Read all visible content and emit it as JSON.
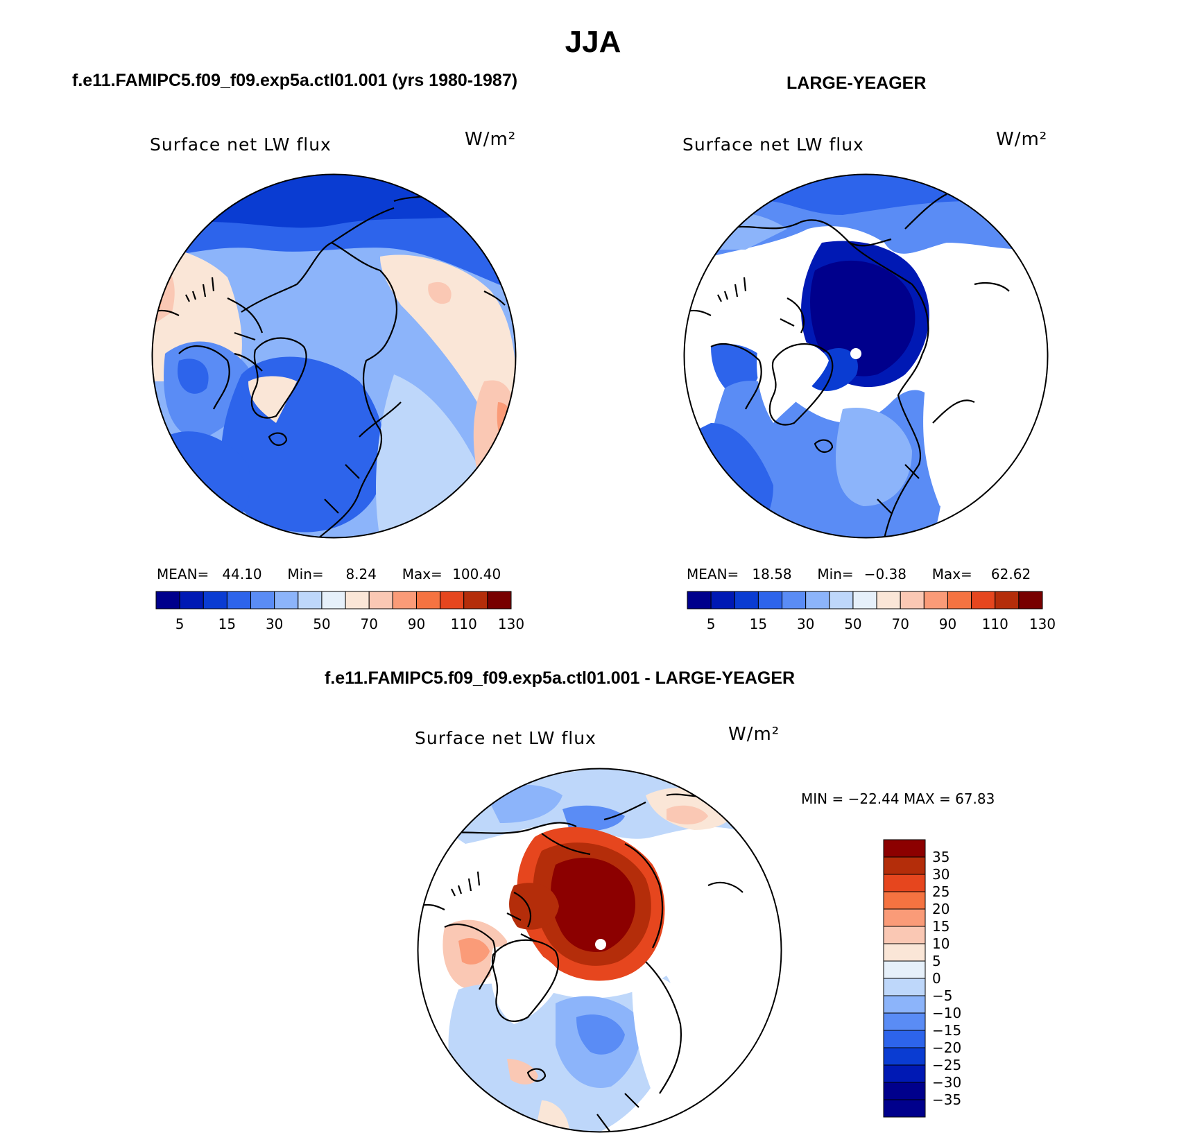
{
  "page": {
    "title": "JJA",
    "left_header": "f.e11.FAMIPC5.f09_f09.exp5a.ctl01.001 (yrs 1980-1987)",
    "right_header": "LARGE-YEAGER",
    "diff_header": "f.e11.FAMIPC5.f09_f09.exp5a.ctl01.001 - LARGE-YEAGER"
  },
  "panels": {
    "model": {
      "title": "Surface net LW flux",
      "units": "W/m²",
      "mean_label": "MEAN=",
      "mean": "44.10",
      "min_label": "Min=",
      "min": "8.24",
      "max_label": "Max=",
      "max": "100.40"
    },
    "obs": {
      "title": "Surface net LW flux",
      "units": "W/m²",
      "mean_label": "MEAN=",
      "mean": "18.58",
      "min_label": "Min=",
      "min": "−0.38",
      "max_label": "Max=",
      "max": "62.62"
    },
    "diff": {
      "title": "Surface net LW flux",
      "units": "W/m²",
      "minmax": "MIN = −22.44 MAX =   67.83"
    }
  },
  "colorbars": {
    "abs": {
      "colors": [
        "#00008c",
        "#0019b4",
        "#0a3cd2",
        "#2d64eb",
        "#5a8cf5",
        "#8cb4fa",
        "#bed7fa",
        "#e6f0fa",
        "#fae6d7",
        "#fac8b4",
        "#fa9b78",
        "#f57341",
        "#e6461e",
        "#b42d0a",
        "#780000"
      ],
      "labels": [
        "5",
        "15",
        "30",
        "50",
        "70",
        "90",
        "110",
        "130"
      ]
    },
    "diff": {
      "colors": [
        "#00008c",
        "#0019b4",
        "#0a3cd2",
        "#2d64eb",
        "#5a8cf5",
        "#8cb4fa",
        "#bed7fa",
        "#e6f0fa",
        "#fae6d7",
        "#fac8b4",
        "#fa9b78",
        "#f57341",
        "#e6461e",
        "#b42d0a",
        "#8c0000"
      ],
      "labels": [
        "−35",
        "−30",
        "−25",
        "−20",
        "−15",
        "−10",
        "−5",
        "0",
        "5",
        "10",
        "15",
        "20",
        "25",
        "30",
        "35"
      ]
    }
  }
}
